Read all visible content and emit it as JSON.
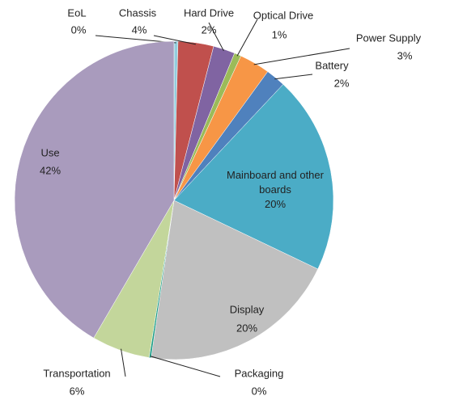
{
  "chart_data": {
    "type": "pie",
    "categories": [
      "EoL",
      "Chassis",
      "Hard Drive",
      "Optical Drive",
      "Power Supply",
      "Battery",
      "Mainboard and other boards",
      "Display",
      "Packaging",
      "Transportation",
      "Use"
    ],
    "values": [
      0.4,
      3.6,
      2.2,
      0.7,
      3.1,
      2.0,
      20.1,
      20.2,
      0.2,
      5.9,
      41.6
    ],
    "value_labels": [
      "0%",
      "4%",
      "2%",
      "1%",
      "3%",
      "2%",
      "20%",
      "20%",
      "0%",
      "6%",
      "42%"
    ],
    "colors": [
      "#93cddd",
      "#c0504d",
      "#8064a2",
      "#9bbb59",
      "#f79646",
      "#4f81bd",
      "#4bacc6",
      "#c0c0c0",
      "#1f9e89",
      "#c3d69b",
      "#a99bbd"
    ]
  }
}
